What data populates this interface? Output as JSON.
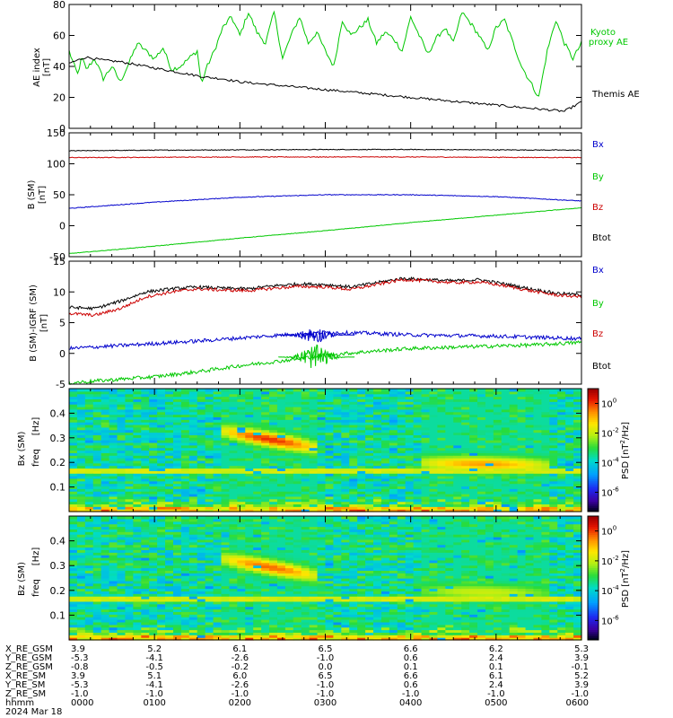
{
  "chart_data": [
    {
      "type": "line",
      "ylabel": "AE index",
      "yunit": "[nT]",
      "ylim": [
        0,
        80
      ],
      "yticks": [
        "0",
        "20",
        "40",
        "60",
        "80"
      ],
      "x_range_hours": [
        0,
        6
      ],
      "legend": [
        "Kyoto proxy AE",
        "Themis AE"
      ],
      "colors": {
        "kyoto": "#00c800",
        "themis": "#000000"
      },
      "series": [
        {
          "name": "Kyoto proxy AE",
          "color": "#00c800",
          "x": [
            0,
            0.05,
            0.1,
            0.15,
            0.2,
            0.3,
            0.4,
            0.5,
            0.6,
            0.7,
            0.8,
            0.9,
            1.0,
            1.1,
            1.2,
            1.3,
            1.4,
            1.5,
            1.55,
            1.6,
            1.7,
            1.8,
            1.9,
            2.0,
            2.1,
            2.2,
            2.3,
            2.4,
            2.5,
            2.6,
            2.7,
            2.8,
            2.9,
            3.0,
            3.1,
            3.2,
            3.3,
            3.4,
            3.5,
            3.6,
            3.7,
            3.8,
            3.9,
            4.0,
            4.1,
            4.2,
            4.3,
            4.4,
            4.5,
            4.6,
            4.7,
            4.8,
            4.9,
            5.0,
            5.1,
            5.2,
            5.3,
            5.4,
            5.5,
            5.6,
            5.7,
            5.8,
            5.9,
            6.0
          ],
          "y": [
            50,
            42,
            35,
            46,
            38,
            45,
            32,
            40,
            30,
            42,
            55,
            50,
            45,
            52,
            38,
            40,
            45,
            50,
            28,
            38,
            50,
            65,
            72,
            60,
            75,
            62,
            55,
            75,
            45,
            60,
            72,
            55,
            62,
            50,
            40,
            70,
            60,
            65,
            70,
            55,
            62,
            58,
            50,
            72,
            60,
            48,
            58,
            65,
            55,
            75,
            68,
            60,
            50,
            65,
            70,
            55,
            40,
            30,
            20,
            50,
            70,
            55,
            45,
            55
          ]
        },
        {
          "name": "Themis AE",
          "color": "#000000",
          "x": [
            0,
            0.2,
            0.4,
            0.6,
            0.8,
            1.0,
            1.2,
            1.4,
            1.6,
            1.8,
            2.0,
            2.2,
            2.4,
            2.6,
            2.8,
            3.0,
            3.2,
            3.4,
            3.6,
            3.8,
            4.0,
            4.2,
            4.4,
            4.6,
            4.8,
            5.0,
            5.2,
            5.4,
            5.6,
            5.8,
            6.0
          ],
          "y": [
            42,
            46,
            44,
            43,
            41,
            39,
            37,
            35,
            33,
            32,
            30,
            29,
            28,
            27,
            26,
            25,
            24,
            23,
            22,
            21,
            20,
            19,
            18,
            17,
            16,
            15,
            14,
            13,
            12,
            11,
            17
          ]
        }
      ]
    },
    {
      "type": "line",
      "ylabel": "B (SM)",
      "yunit": "[nT]",
      "ylim": [
        -50,
        150
      ],
      "yticks": [
        "-50",
        "0",
        "50",
        "100",
        "150"
      ],
      "x_range_hours": [
        0,
        6
      ],
      "legend": [
        "Bx",
        "By",
        "Bz",
        "Btot"
      ],
      "series": [
        {
          "name": "Bx",
          "color": "#000000",
          "x": [
            0,
            1,
            2,
            3,
            4,
            5,
            6
          ],
          "y": [
            121,
            122,
            122.5,
            123,
            123,
            122.5,
            122
          ]
        },
        {
          "name": "By",
          "color": "#cc0000",
          "x": [
            0,
            1,
            2,
            3,
            4,
            5,
            6
          ],
          "y": [
            110,
            110.5,
            111,
            111,
            111,
            110.5,
            110
          ]
        },
        {
          "name": "Bz",
          "color": "#0000cc",
          "x": [
            0,
            1,
            2,
            3,
            4,
            5,
            6
          ],
          "y": [
            28,
            38,
            46,
            50,
            50,
            47,
            40
          ]
        },
        {
          "name": "Btot",
          "color": "#00c800",
          "x": [
            0,
            1,
            2,
            3,
            4,
            5,
            6
          ],
          "y": [
            -45,
            -33,
            -20,
            -8,
            5,
            17,
            29
          ]
        }
      ]
    },
    {
      "type": "line",
      "ylabel": "B (SM)-IGRF (SM)",
      "yunit": "[nT]",
      "ylim": [
        -5,
        15
      ],
      "yticks": [
        "-5",
        "0",
        "5",
        "10",
        "15"
      ],
      "x_range_hours": [
        0,
        6
      ],
      "legend": [
        "Bx",
        "By",
        "Bz",
        "Btot"
      ],
      "series": [
        {
          "name": "Bx",
          "color": "#000000",
          "x": [
            0,
            0.3,
            0.6,
            0.9,
            1.2,
            1.5,
            1.8,
            2.1,
            2.4,
            2.7,
            3.0,
            3.3,
            3.6,
            3.9,
            4.2,
            4.5,
            4.8,
            5.1,
            5.4,
            5.7,
            6.0
          ],
          "y": [
            7.5,
            7.3,
            8.5,
            10,
            10.5,
            10.8,
            10.6,
            10.5,
            11,
            11.3,
            11.2,
            10.8,
            11.5,
            12.2,
            12,
            11.8,
            12,
            11.3,
            10.5,
            9.8,
            9.5
          ]
        },
        {
          "name": "By",
          "color": "#cc0000",
          "x": [
            0,
            0.3,
            0.6,
            0.9,
            1.2,
            1.5,
            1.8,
            2.1,
            2.4,
            2.7,
            3.0,
            3.3,
            3.6,
            3.9,
            4.2,
            4.5,
            4.8,
            5.1,
            5.4,
            5.7,
            6.0
          ],
          "y": [
            6.5,
            6.2,
            7.3,
            9.2,
            10,
            10.5,
            10.3,
            10.2,
            10.6,
            10.9,
            10.8,
            10.4,
            11.2,
            12,
            11.8,
            11.5,
            11.6,
            11,
            10.2,
            9.5,
            9.2
          ]
        },
        {
          "name": "Bz",
          "color": "#0000cc",
          "x": [
            0,
            0.5,
            1.0,
            1.5,
            2.0,
            2.5,
            3.0,
            3.5,
            4.0,
            4.5,
            5.0,
            5.5,
            6.0
          ],
          "y": [
            0.8,
            1.2,
            1.6,
            2,
            2.5,
            3,
            3.4,
            3.3,
            3,
            2.9,
            2.8,
            2.6,
            2.4
          ]
        },
        {
          "name": "Btot",
          "color": "#00c800",
          "x": [
            0,
            0.5,
            1.0,
            1.5,
            2.0,
            2.5,
            3.0,
            3.5,
            4.0,
            4.5,
            5.0,
            5.5,
            6.0
          ],
          "y": [
            -4.8,
            -4.3,
            -3.8,
            -3,
            -2,
            -1.2,
            -0.3,
            0.3,
            0.8,
            1,
            1.2,
            1.4,
            1.8
          ]
        }
      ]
    },
    {
      "type": "heatmap",
      "ylabel": "Bx (SM)",
      "yunit_label": "freq",
      "yunit": "[Hz]",
      "ylim": [
        0,
        0.5
      ],
      "yticks": [
        "0.1",
        "0.2",
        "0.3",
        "0.4"
      ],
      "x_range_hours": [
        0,
        6
      ],
      "colorbar_label": "PSD [nT^2/Hz]",
      "colorbar_ticks": [
        "10^0",
        "10^-2",
        "10^-4",
        "10^-6"
      ],
      "features": [
        {
          "desc": "enhancement",
          "x0": 1.8,
          "x1": 2.9,
          "y_start": 0.33,
          "y_end": 0.26,
          "level": 0.9
        },
        {
          "desc": "enhancement",
          "x0": 4.1,
          "x1": 5.6,
          "y_start": 0.2,
          "y_end": 0.19,
          "level": 0.8
        }
      ]
    },
    {
      "type": "heatmap",
      "ylabel": "Bz (SM)",
      "yunit_label": "freq",
      "yunit": "[Hz]",
      "ylim": [
        0,
        0.5
      ],
      "yticks": [
        "0.1",
        "0.2",
        "0.3",
        "0.4"
      ],
      "x_range_hours": [
        0,
        6
      ],
      "colorbar_label": "PSD [nT^2/Hz]",
      "colorbar_ticks": [
        "10^0",
        "10^-2",
        "10^-4",
        "10^-6"
      ],
      "features": [
        {
          "desc": "enhancement",
          "x0": 1.8,
          "x1": 2.9,
          "y_start": 0.33,
          "y_end": 0.26,
          "level": 0.85
        },
        {
          "desc": "enhancement",
          "x0": 4.1,
          "x1": 5.6,
          "y_start": 0.2,
          "y_end": 0.19,
          "level": 0.65
        }
      ]
    }
  ],
  "labels": {
    "p1_ylabel": "AE index",
    "p1_unit": "[nT]",
    "p1_legend1a": "Kyoto",
    "p1_legend1b": "proxy AE",
    "p1_legend2": "Themis AE",
    "p2_ylabel": "B  (SM)",
    "p2_unit": "[nT]",
    "p3_ylabel": "B (SM)-IGRF (SM)",
    "p3_unit": "[nT]",
    "legend_bx": "Bx",
    "legend_by": "By",
    "legend_bz": "Bz",
    "legend_btot": "Btot",
    "spec1_ylabel": "Bx (SM)",
    "spec2_ylabel": "Bz (SM)",
    "spec_freq": "freq",
    "spec_unit": "[Hz]",
    "cbar_label": "PSD [nT",
    "cbar_label_sup": "2",
    "cbar_label_end": "/Hz]"
  },
  "footer": {
    "row_labels": [
      "X_RE_GSM",
      "Y_RE_GSM",
      "Z_RE_GSM",
      "X_RE_SM",
      "Y_RE_SM",
      "Z_RE_SM",
      "hhmm",
      "2024 Mar 18"
    ],
    "columns": [
      [
        "3.9",
        "-5.3",
        "-0.8",
        "3.9",
        "-5.3",
        "-1.0",
        "0000"
      ],
      [
        "5.2",
        "-4.1",
        "-0.5",
        "5.1",
        "-4.1",
        "-1.0",
        "0100"
      ],
      [
        "6.1",
        "-2.6",
        "-0.2",
        "6.0",
        "-2.6",
        "-1.0",
        "0200"
      ],
      [
        "6.5",
        "-1.0",
        "0.0",
        "6.5",
        "-1.0",
        "-1.0",
        "0300"
      ],
      [
        "6.6",
        "0.6",
        "0.1",
        "6.6",
        "0.6",
        "-1.0",
        "0400"
      ],
      [
        "6.2",
        "2.4",
        "0.1",
        "6.1",
        "2.4",
        "-1.0",
        "0500"
      ],
      [
        "5.3",
        "3.9",
        "-0.1",
        "5.2",
        "3.9",
        "-1.0",
        "0600"
      ]
    ]
  }
}
